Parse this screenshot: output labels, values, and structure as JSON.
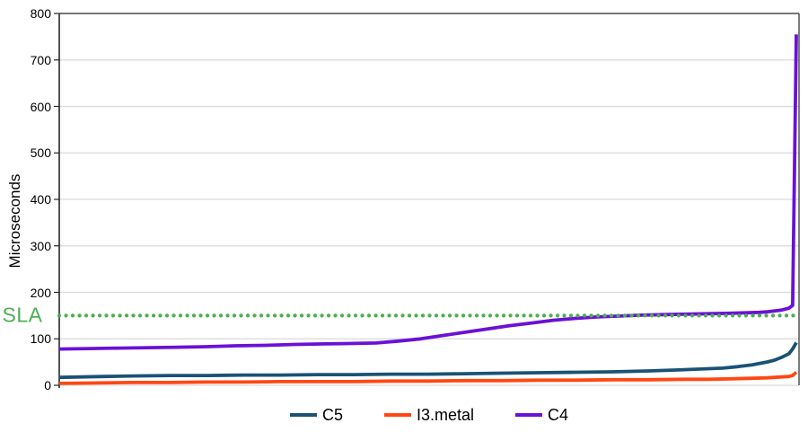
{
  "chart_data": {
    "type": "line",
    "title": "",
    "xlabel": "",
    "ylabel": "Microseconds",
    "ylim": [
      0,
      800
    ],
    "yticks": [
      0,
      100,
      200,
      300,
      400,
      500,
      600,
      700,
      800
    ],
    "x_axis": "unlabeled percentile axis, 0-100",
    "grid": "horizontal-light-gray",
    "legend_position": "bottom-center",
    "frame_color": "#262626",
    "gridline_color": "#d9d9d9",
    "sla": {
      "label": "SLA",
      "value": 150,
      "color": "#4caf50",
      "style": "dotted"
    },
    "series": [
      {
        "name": "C5",
        "color": "#1a5276",
        "points": [
          [
            0,
            17
          ],
          [
            3,
            18
          ],
          [
            6,
            19
          ],
          [
            10,
            20
          ],
          [
            15,
            21
          ],
          [
            20,
            21
          ],
          [
            25,
            22
          ],
          [
            30,
            22
          ],
          [
            35,
            23
          ],
          [
            40,
            23
          ],
          [
            45,
            24
          ],
          [
            50,
            24
          ],
          [
            55,
            25
          ],
          [
            60,
            26
          ],
          [
            65,
            27
          ],
          [
            70,
            28
          ],
          [
            75,
            29
          ],
          [
            80,
            31
          ],
          [
            84,
            33
          ],
          [
            87,
            35
          ],
          [
            90,
            37
          ],
          [
            92,
            40
          ],
          [
            94,
            44
          ],
          [
            96,
            50
          ],
          [
            97,
            54
          ],
          [
            98,
            60
          ],
          [
            99,
            68
          ],
          [
            99.5,
            78
          ],
          [
            100,
            92
          ]
        ]
      },
      {
        "name": "I3.metal",
        "color": "#ff4713",
        "points": [
          [
            0,
            4
          ],
          [
            5,
            5
          ],
          [
            10,
            6
          ],
          [
            15,
            6
          ],
          [
            20,
            7
          ],
          [
            25,
            7
          ],
          [
            30,
            8
          ],
          [
            35,
            8
          ],
          [
            40,
            8
          ],
          [
            45,
            9
          ],
          [
            50,
            9
          ],
          [
            55,
            10
          ],
          [
            60,
            10
          ],
          [
            65,
            11
          ],
          [
            70,
            11
          ],
          [
            75,
            12
          ],
          [
            80,
            12
          ],
          [
            85,
            13
          ],
          [
            88,
            13
          ],
          [
            91,
            14
          ],
          [
            94,
            15
          ],
          [
            96,
            16
          ],
          [
            97,
            17
          ],
          [
            98,
            18
          ],
          [
            99,
            19
          ],
          [
            99.5,
            21
          ],
          [
            100,
            28
          ]
        ]
      },
      {
        "name": "C4",
        "color": "#6b11d6",
        "points": [
          [
            0,
            78
          ],
          [
            4,
            79
          ],
          [
            8,
            80
          ],
          [
            12,
            81
          ],
          [
            16,
            82
          ],
          [
            20,
            83
          ],
          [
            24,
            85
          ],
          [
            28,
            86
          ],
          [
            32,
            88
          ],
          [
            36,
            89
          ],
          [
            40,
            90
          ],
          [
            43,
            91
          ],
          [
            46,
            95
          ],
          [
            49,
            100
          ],
          [
            52,
            107
          ],
          [
            55,
            114
          ],
          [
            58,
            121
          ],
          [
            61,
            128
          ],
          [
            64,
            134
          ],
          [
            67,
            140
          ],
          [
            70,
            144
          ],
          [
            73,
            147
          ],
          [
            76,
            149
          ],
          [
            79,
            151
          ],
          [
            82,
            152
          ],
          [
            85,
            153
          ],
          [
            88,
            154
          ],
          [
            91,
            155
          ],
          [
            93,
            156
          ],
          [
            95,
            157
          ],
          [
            96,
            158
          ],
          [
            97,
            160
          ],
          [
            98,
            162
          ],
          [
            99,
            166
          ],
          [
            99.5,
            172
          ],
          [
            100,
            755
          ]
        ]
      }
    ]
  }
}
